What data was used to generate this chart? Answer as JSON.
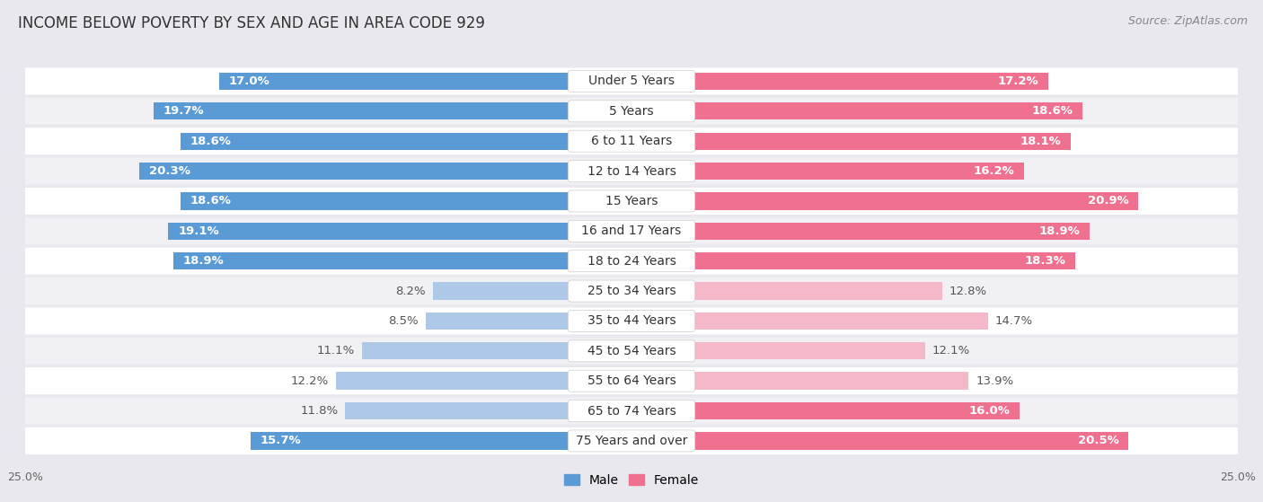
{
  "title": "INCOME BELOW POVERTY BY SEX AND AGE IN AREA CODE 929",
  "source": "Source: ZipAtlas.com",
  "categories": [
    "Under 5 Years",
    "5 Years",
    "6 to 11 Years",
    "12 to 14 Years",
    "15 Years",
    "16 and 17 Years",
    "18 to 24 Years",
    "25 to 34 Years",
    "35 to 44 Years",
    "45 to 54 Years",
    "55 to 64 Years",
    "65 to 74 Years",
    "75 Years and over"
  ],
  "male": [
    17.0,
    19.7,
    18.6,
    20.3,
    18.6,
    19.1,
    18.9,
    8.2,
    8.5,
    11.1,
    12.2,
    11.8,
    15.7
  ],
  "female": [
    17.2,
    18.6,
    18.1,
    16.2,
    20.9,
    18.9,
    18.3,
    12.8,
    14.7,
    12.1,
    13.9,
    16.0,
    20.5
  ],
  "male_color_high": "#5b9bd5",
  "male_color_low": "#aec8e8",
  "female_color_high": "#f07090",
  "female_color_low": "#f5b8c8",
  "male_label": "Male",
  "female_label": "Female",
  "xlim": 25.0,
  "bg_color": "#e8e8ee",
  "row_color_odd": "#ffffff",
  "row_color_even": "#f0f0f5",
  "title_fontsize": 12,
  "source_fontsize": 9,
  "label_fontsize": 9.5,
  "cat_fontsize": 10,
  "tick_fontsize": 9,
  "high_threshold": 15.0
}
